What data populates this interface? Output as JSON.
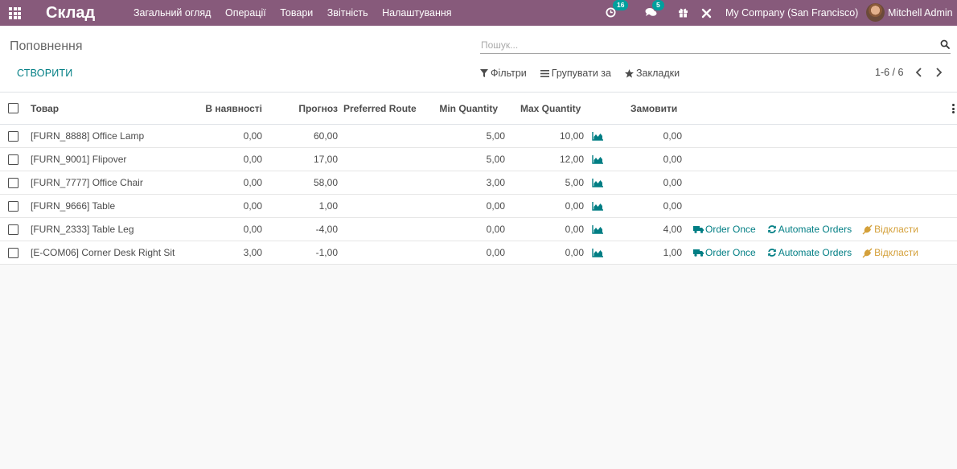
{
  "navbar": {
    "app_name": "Склад",
    "menu": [
      "Загальний огляд",
      "Операції",
      "Товари",
      "Звітність",
      "Налаштування"
    ],
    "activity_count": "16",
    "messages_count": "5",
    "company": "My Company (San Francisco)",
    "user": "Mitchell Admin"
  },
  "control": {
    "breadcrumb": "Поповнення",
    "search_placeholder": "Пошук...",
    "create_label": "СТВОРИТИ",
    "filters_label": "Фільтри",
    "groupby_label": "Групувати за",
    "favorites_label": "Закладки",
    "pager": "1-6 / 6"
  },
  "table": {
    "columns": {
      "product": "Товар",
      "on_hand": "В наявності",
      "forecast": "Прогноз",
      "route": "Preferred Route",
      "min_qty": "Min Quantity",
      "max_qty": "Max Quantity",
      "order": "Замовити"
    },
    "actions": {
      "order_once": "Order Once",
      "automate": "Automate Orders",
      "postpone": "Відкласти"
    },
    "rows": [
      {
        "product": "[FURN_8888] Office Lamp",
        "on_hand": "0,00",
        "forecast": "60,00",
        "route": "",
        "min_qty": "5,00",
        "max_qty": "10,00",
        "order": "0,00"
      },
      {
        "product": "[FURN_9001] Flipover",
        "on_hand": "0,00",
        "forecast": "17,00",
        "route": "",
        "min_qty": "5,00",
        "max_qty": "12,00",
        "order": "0,00"
      },
      {
        "product": "[FURN_7777] Office Chair",
        "on_hand": "0,00",
        "forecast": "58,00",
        "route": "",
        "min_qty": "3,00",
        "max_qty": "5,00",
        "order": "0,00"
      },
      {
        "product": "[FURN_9666] Table",
        "on_hand": "0,00",
        "forecast": "1,00",
        "route": "",
        "min_qty": "0,00",
        "max_qty": "0,00",
        "order": "0,00"
      },
      {
        "product": "[FURN_2333] Table Leg",
        "on_hand": "0,00",
        "forecast": "-4,00",
        "route": "",
        "min_qty": "0,00",
        "max_qty": "0,00",
        "order": "4,00"
      },
      {
        "product": "[E-COM06] Corner Desk Right Sit",
        "on_hand": "3,00",
        "forecast": "-1,00",
        "route": "",
        "min_qty": "0,00",
        "max_qty": "0,00",
        "order": "1,00"
      }
    ],
    "row_has_actions": [
      false,
      false,
      false,
      false,
      true,
      true
    ]
  },
  "colors": {
    "navbar": "#875a7b",
    "accent": "#017e84",
    "badge": "#00a09d",
    "postpone": "#d4a03a"
  }
}
